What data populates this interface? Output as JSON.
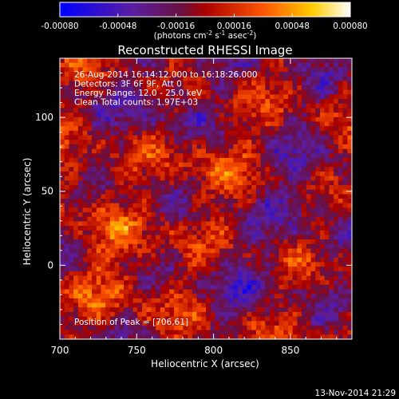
{
  "chart_data": {
    "type": "heatmap",
    "title": "Reconstructed RHESSI Image",
    "xlabel": "Heliocentric X (arcsec)",
    "ylabel": "Heliocentric Y (arcsec)",
    "xlim": [
      700,
      890
    ],
    "ylim": [
      -50,
      140
    ],
    "x_ticks": [
      700,
      750,
      800,
      850
    ],
    "y_ticks": [
      0,
      50,
      100
    ],
    "colorbar": {
      "min": -0.0008,
      "max": 0.0008,
      "ticks": [
        "-0.00080",
        "-0.00048",
        "-0.00016",
        "0.00016",
        "0.00048",
        "0.00080"
      ],
      "unit_prefix": "(photons cm",
      "unit_exp1": "-2",
      "unit_mid": " s",
      "unit_exp2": "-1",
      "unit_mid2": " asec",
      "unit_exp3": "-2",
      "unit_suffix": ")",
      "colormap": "blue-purple-red-yellow-white"
    },
    "annotations": [
      "26-Aug-2014 16:14:12.000 to 16:18:26.000",
      "Detectors: 3F 6F 9F, Att 0",
      "Energy Range: 12.0 - 25.0 keV",
      "Clean     Total counts: 1.97E+03"
    ],
    "peak_label": "Position of Peak = [706,61]",
    "peak": [
      706,
      61
    ],
    "grid": false
  },
  "footer": {
    "timestamp": "13-Nov-2014 21:29"
  }
}
